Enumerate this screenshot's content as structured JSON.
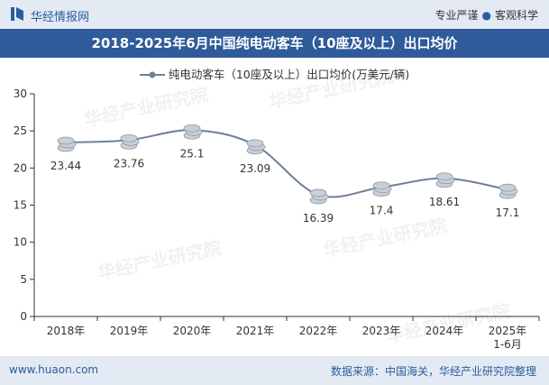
{
  "header": {
    "brand": "华经情报网",
    "tagline_left": "专业严谨",
    "tagline_right": "客观科学"
  },
  "chart_data": {
    "type": "line",
    "title": "2018-2025年6月中国纯电动客车（10座及以上）出口均价",
    "categories": [
      "2018年",
      "2019年",
      "2020年",
      "2021年",
      "2022年",
      "2023年",
      "2024年",
      "2025年\n1-6月"
    ],
    "series": [
      {
        "name": "纯电动客车（10座及以上）出口均价(万美元/辆)",
        "values": [
          23.44,
          23.76,
          25.1,
          23.09,
          16.39,
          17.4,
          18.61,
          17.1
        ],
        "data_labels": [
          "23.44",
          "23.76",
          "25.1",
          "23.09",
          "16.39",
          "17.4",
          "18.61",
          "17.1"
        ]
      }
    ],
    "ylim": [
      0,
      30
    ],
    "yticks": [
      "0",
      "5",
      "10",
      "15",
      "20",
      "25",
      "30"
    ],
    "smooth": true,
    "grid": false,
    "legend": "top-center",
    "colors": {
      "line": "#6e7f99",
      "coin": "#c9cfd8",
      "title_bg": "#2f5b9a",
      "bar_bg": "#e4eaf3"
    }
  },
  "watermark": "华经产业研究院",
  "footer": {
    "url": "www.huaon.com",
    "source": "数据来源：中国海关，华经产业研究院整理"
  }
}
